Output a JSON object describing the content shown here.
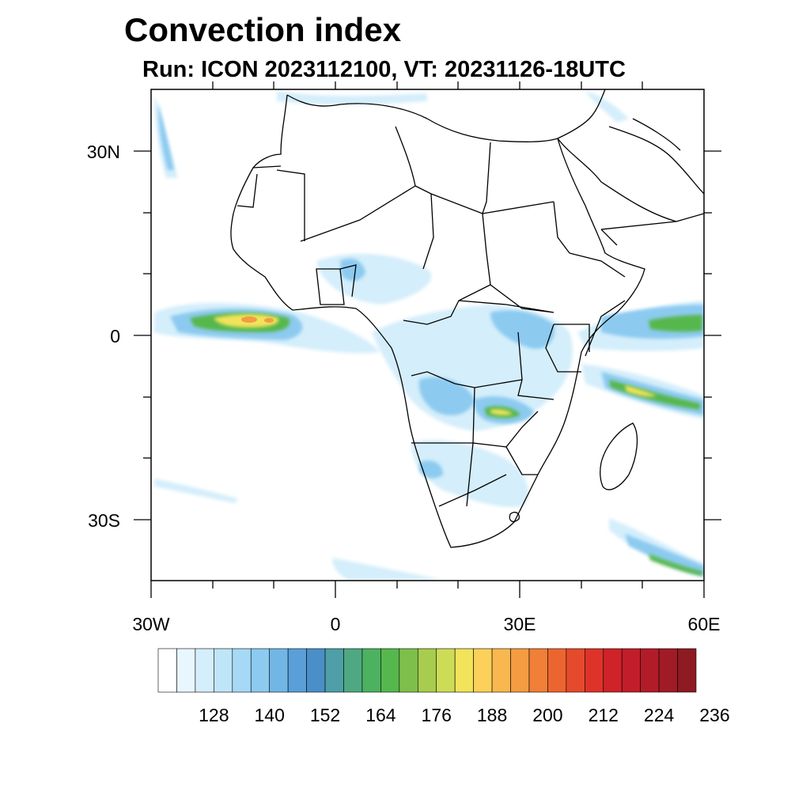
{
  "title": "Convection index",
  "subtitle": "Run: ICON 2023112100,  VT: 20231126-18UTC",
  "map": {
    "lon_range": [
      -30,
      60
    ],
    "lat_range": [
      -40,
      40
    ],
    "lat_labels": [
      "30N",
      "0",
      "30S"
    ],
    "lon_labels": [
      "30W",
      "0",
      "30E",
      "60E"
    ]
  },
  "colorbar": {
    "labels": [
      "128",
      "140",
      "152",
      "164",
      "176",
      "188",
      "200",
      "212",
      "224",
      "236"
    ],
    "colors": [
      "#ffffff",
      "#e8f6fd",
      "#d4eefb",
      "#bfe5f8",
      "#a6d9f5",
      "#8ccaf0",
      "#72b6e6",
      "#5a9fd8",
      "#4b8fc8",
      "#4e9fa8",
      "#4ea983",
      "#4db260",
      "#56b74d",
      "#7ebf4c",
      "#a8cc4e",
      "#cddc57",
      "#f1e35a",
      "#fcd05a",
      "#f8b84f",
      "#f49c42",
      "#f07f37",
      "#ec6530",
      "#e54a2c",
      "#dd3329",
      "#cf2229",
      "#c11d2a",
      "#b21c28",
      "#a11b26",
      "#8e1a22"
    ]
  }
}
